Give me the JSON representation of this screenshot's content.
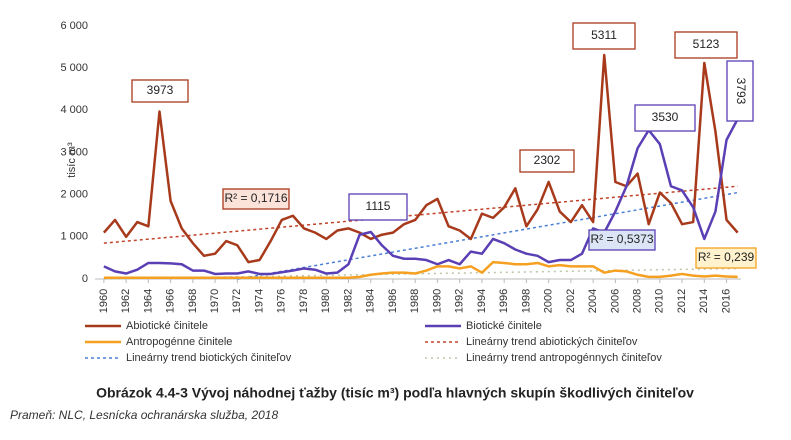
{
  "chart_data": {
    "type": "line",
    "ylabel": "tisíc m³",
    "x": [
      1960,
      1961,
      1962,
      1963,
      1964,
      1965,
      1966,
      1967,
      1968,
      1969,
      1970,
      1971,
      1972,
      1973,
      1974,
      1975,
      1976,
      1977,
      1978,
      1979,
      1980,
      1981,
      1982,
      1983,
      1984,
      1985,
      1986,
      1987,
      1988,
      1989,
      1990,
      1991,
      1992,
      1993,
      1994,
      1995,
      1996,
      1997,
      1998,
      1999,
      2000,
      2001,
      2002,
      2003,
      2004,
      2005,
      2006,
      2007,
      2008,
      2009,
      2010,
      2011,
      2012,
      2013,
      2014,
      2015,
      2016,
      2017
    ],
    "xlim": [
      1959.2,
      2017.3
    ],
    "xticks": [
      1960,
      1962,
      1964,
      1966,
      1968,
      1970,
      1972,
      1974,
      1976,
      1978,
      1980,
      1982,
      1984,
      1986,
      1988,
      1990,
      1992,
      1994,
      1996,
      1998,
      2000,
      2002,
      2004,
      2006,
      2008,
      2010,
      2012,
      2014,
      2016
    ],
    "ylim": [
      0,
      6000
    ],
    "yticks": [
      0,
      {
        "value": 1000,
        "label": "1 000"
      },
      {
        "value": 2000,
        "label": "2 000"
      },
      {
        "value": 3000,
        "label": "3 000"
      },
      {
        "value": 4000,
        "label": "4 000"
      },
      {
        "value": 5000,
        "label": "5 000"
      },
      {
        "value": 6000,
        "label": "6 000"
      }
    ],
    "series": [
      {
        "name": "Abiotické činitele",
        "color": "#a83a1c",
        "values": [
          1100,
          1400,
          1000,
          1350,
          1250,
          3973,
          1850,
          1200,
          850,
          550,
          600,
          900,
          800,
          400,
          450,
          900,
          1400,
          1500,
          1200,
          1100,
          950,
          1150,
          1200,
          1100,
          950,
          1050,
          1100,
          1300,
          1400,
          1750,
          1900,
          1250,
          1150,
          950,
          1550,
          1450,
          1700,
          2150,
          1250,
          1650,
          2302,
          1600,
          1350,
          1750,
          1350,
          5311,
          2300,
          2200,
          2500,
          1300,
          2050,
          1800,
          1300,
          1350,
          5123,
          3500,
          1400,
          1100
        ]
      },
      {
        "name": "Biotické činitele",
        "color": "#5a3fb5",
        "values": [
          300,
          180,
          130,
          220,
          380,
          380,
          370,
          350,
          200,
          200,
          120,
          130,
          130,
          180,
          120,
          120,
          160,
          200,
          250,
          220,
          130,
          150,
          350,
          1050,
          1115,
          800,
          550,
          480,
          480,
          450,
          350,
          450,
          350,
          650,
          600,
          950,
          850,
          700,
          600,
          550,
          400,
          450,
          450,
          600,
          1200,
          1100,
          1600,
          2200,
          3100,
          3530,
          3200,
          2200,
          2100,
          1700,
          950,
          1600,
          3300,
          3793
        ]
      },
      {
        "name": "Antropogénne činitele",
        "color": "#f5a020",
        "values": [
          30,
          30,
          30,
          30,
          30,
          30,
          30,
          30,
          30,
          30,
          30,
          30,
          30,
          30,
          30,
          30,
          30,
          30,
          30,
          30,
          30,
          30,
          30,
          50,
          100,
          130,
          150,
          150,
          130,
          200,
          300,
          300,
          250,
          300,
          150,
          400,
          380,
          350,
          350,
          380,
          300,
          330,
          300,
          300,
          300,
          150,
          200,
          180,
          100,
          50,
          50,
          80,
          120,
          80,
          60,
          80,
          60,
          50
        ]
      }
    ],
    "trends": [
      {
        "name": "Lineárny trend abiotických činiteľov",
        "color": "#c0432a",
        "x": [
          1960,
          2017
        ],
        "values": [
          850,
          2200
        ]
      },
      {
        "name": "Lineárny trend biotických činiteľov",
        "color": "#4a7fd4",
        "x": [
          1972,
          2017
        ],
        "values": [
          0,
          2050
        ]
      },
      {
        "name": "Lineárny trend antropogénnych činiteľov",
        "color": "#b9c6a6",
        "x": [
          1960,
          2017
        ],
        "values": [
          0,
          250
        ]
      }
    ],
    "annotations": [
      {
        "text": "3973",
        "series": 0,
        "x": 1965
      },
      {
        "text": "5311",
        "series": 0,
        "x": 2005
      },
      {
        "text": "5123",
        "series": 0,
        "x": 2014
      },
      {
        "text": "2302",
        "series": 0,
        "x": 2000
      },
      {
        "text": "1115",
        "series": 1,
        "x": 1984
      },
      {
        "text": "3530",
        "series": 1,
        "x": 2009
      },
      {
        "text": "3793",
        "series": 1,
        "x": 2017
      },
      {
        "text": "R² = 0,1716",
        "series": 0
      },
      {
        "text": "R² = 0,5373",
        "series": 1
      },
      {
        "text": "R² = 0,239",
        "series": 2
      }
    ],
    "caption": "Obrázok 4.4-3 Vývoj náhodnej ťažby (tisíc m³) podľa hlavných skupín škodlivých činiteľov",
    "source": "Prameň: NLC, Lesnícka ochranárska služba, 2018"
  }
}
